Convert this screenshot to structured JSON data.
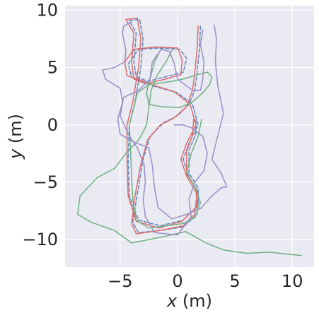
{
  "chart_data": {
    "type": "line",
    "xlabel_var": "x",
    "xlabel_unit": " (m)",
    "ylabel_var": "y",
    "ylabel_unit": " (m)",
    "xlim": [
      -9.8,
      11.9
    ],
    "ylim": [
      -12.4,
      10.4
    ],
    "x_ticks": [
      -5,
      0,
      5,
      10
    ],
    "x_tick_labels": [
      "−5",
      "0",
      "5",
      "10"
    ],
    "y_ticks": [
      -10,
      -5,
      0,
      5,
      10
    ],
    "y_tick_labels": [
      "−10",
      "−5",
      "0",
      "5",
      "10"
    ],
    "grid": true,
    "background": "#eaeaf2",
    "series": [
      {
        "color": "#5f84b9",
        "dashed": true,
        "points": [
          [
            2.0,
            8.6
          ],
          [
            1.9,
            6.5
          ],
          [
            1.7,
            4.5
          ],
          [
            1.5,
            3.0
          ],
          [
            1.0,
            1.8
          ],
          [
            0.0,
            0.8
          ],
          [
            -1.2,
            0.2
          ],
          [
            -2.4,
            -1.0
          ],
          [
            -3.0,
            -3.0
          ],
          [
            -3.5,
            -6.0
          ],
          [
            -3.9,
            -8.5
          ],
          [
            -3.4,
            -9.4
          ],
          [
            -1.5,
            -9.2
          ],
          [
            0.5,
            -8.9
          ],
          [
            1.7,
            -7.8
          ],
          [
            1.8,
            -6.0
          ],
          [
            1.0,
            -4.5
          ],
          [
            0.5,
            -3.0
          ],
          [
            1.0,
            -1.6
          ],
          [
            1.8,
            0.0
          ],
          [
            1.3,
            1.8
          ],
          [
            0,
            2.8
          ],
          [
            -1.8,
            3.3
          ],
          [
            -3.0,
            3.7
          ],
          [
            -4.0,
            4.2
          ],
          [
            -4.3,
            5.3
          ],
          [
            -3.4,
            6.6
          ],
          [
            -1.6,
            6.7
          ],
          [
            0.2,
            6.6
          ],
          [
            0.8,
            5.8
          ],
          [
            0.5,
            4.6
          ],
          [
            -1,
            4.2
          ],
          [
            -2.6,
            3.8
          ],
          [
            -3.6,
            4.2
          ],
          [
            -3.8,
            5.5
          ],
          [
            -3.6,
            8.0
          ],
          [
            -4.2,
            9.1
          ],
          [
            -3.3,
            9.2
          ],
          [
            -3.0,
            7.5
          ],
          [
            -3.2,
            5.0
          ],
          [
            -3.7,
            2.0
          ],
          [
            -4.2,
            0.0
          ],
          [
            -4.3,
            -3.0
          ],
          [
            -4.2,
            -6.2
          ],
          [
            -3.4,
            -8.3
          ],
          [
            -1.5,
            -8.8
          ],
          [
            0.5,
            -8.3
          ],
          [
            1.8,
            -7.0
          ],
          [
            1.8,
            -5.5
          ],
          [
            1.0,
            -4.2
          ],
          [
            1.0,
            -2.2
          ],
          [
            1.6,
            -0.8
          ],
          [
            1.6,
            0.6
          ]
        ]
      },
      {
        "color": "#dd6a6a",
        "dashed": false,
        "points": [
          [
            1.8,
            8.6
          ],
          [
            1.7,
            6.5
          ],
          [
            1.5,
            4.5
          ],
          [
            1.3,
            3.0
          ],
          [
            0.8,
            1.6
          ],
          [
            -0.3,
            0.6
          ],
          [
            -1.5,
            0.0
          ],
          [
            -2.6,
            -1.3
          ],
          [
            -3.2,
            -3.4
          ],
          [
            -3.7,
            -6.2
          ],
          [
            -4.0,
            -8.6
          ],
          [
            -3.6,
            -9.5
          ],
          [
            -1.5,
            -9.2
          ],
          [
            0.5,
            -8.8
          ],
          [
            1.5,
            -7.8
          ],
          [
            1.7,
            -6.0
          ],
          [
            0.8,
            -4.5
          ],
          [
            0.3,
            -3.0
          ],
          [
            0.8,
            -1.6
          ],
          [
            1.6,
            0.0
          ],
          [
            1.1,
            1.8
          ],
          [
            -0.3,
            2.9
          ],
          [
            -1.9,
            3.4
          ],
          [
            -3.2,
            3.9
          ],
          [
            -4.4,
            4.3
          ],
          [
            -4.6,
            5.5
          ],
          [
            -3.8,
            6.6
          ],
          [
            -1.8,
            6.8
          ],
          [
            0,
            6.7
          ],
          [
            0.4,
            5.7
          ],
          [
            0.3,
            4.4
          ],
          [
            -1,
            4.0
          ],
          [
            -2.8,
            3.6
          ],
          [
            -3.8,
            4.0
          ],
          [
            -4.0,
            5.5
          ],
          [
            -3.8,
            8.0
          ],
          [
            -4.5,
            9.2
          ],
          [
            -3.5,
            9.3
          ],
          [
            -3.2,
            7.5
          ],
          [
            -3.4,
            5.0
          ],
          [
            -3.9,
            2.0
          ],
          [
            -4.4,
            0.0
          ],
          [
            -4.4,
            -3.0
          ],
          [
            -4.3,
            -6.2
          ],
          [
            -3.6,
            -8.4
          ],
          [
            -1.6,
            -9.0
          ],
          [
            0.4,
            -8.4
          ],
          [
            1.7,
            -7.1
          ],
          [
            1.6,
            -5.5
          ],
          [
            0.8,
            -4.3
          ],
          [
            0.8,
            -2.3
          ],
          [
            1.3,
            -0.9
          ],
          [
            1.4,
            0.5
          ]
        ]
      },
      {
        "color": "#6fb07f",
        "dashed": false,
        "points": [
          [
            -0.5,
            6.5
          ],
          [
            -1.0,
            5.5
          ],
          [
            -1.8,
            4.3
          ],
          [
            -2.3,
            3.0
          ],
          [
            -2.5,
            1.5
          ],
          [
            -2.7,
            0.0
          ],
          [
            -3.3,
            -1.2
          ],
          [
            -4.5,
            -2.5
          ],
          [
            -5.5,
            -3.8
          ],
          [
            -7.0,
            -4.6
          ],
          [
            -8.5,
            -6.2
          ],
          [
            -8.7,
            -7.8
          ],
          [
            -7.5,
            -8.5
          ],
          [
            -5.5,
            -9.2
          ],
          [
            -4.0,
            -10.3
          ],
          [
            -2.5,
            -10.0
          ],
          [
            -1.0,
            -9.7
          ],
          [
            0.7,
            -9.3
          ],
          [
            2.5,
            -10.3
          ],
          [
            4.0,
            -10.9
          ],
          [
            6.0,
            -11.2
          ],
          [
            8.0,
            -11.1
          ],
          [
            10.8,
            -11.4
          ]
        ],
        "extra": [
          [
            [
              -1.5,
              6.5
            ],
            [
              -2.0,
              5.5
            ],
            [
              -2.4,
              4.0
            ],
            [
              -2.7,
              2.8
            ],
            [
              -2.5,
              1.8
            ],
            [
              -1.5,
              1.6
            ],
            [
              0.2,
              1.5
            ],
            [
              1.3,
              2.0
            ],
            [
              2.2,
              2.8
            ],
            [
              2.8,
              3.5
            ],
            [
              3.0,
              4.2
            ],
            [
              2.6,
              4.6
            ],
            [
              1.8,
              4.4
            ],
            [
              0.5,
              4.0
            ],
            [
              -0.5,
              3.8
            ],
            [
              -2.5,
              3.5
            ],
            [
              -3.5,
              2.8
            ],
            [
              -3.8,
              1.5
            ],
            [
              -4.2,
              0.0
            ],
            [
              -4.1,
              -2.0
            ],
            [
              -4.0,
              -4.5
            ],
            [
              -3.9,
              -6.5
            ],
            [
              -3.6,
              -8.3
            ],
            [
              -2.5,
              -9.0
            ],
            [
              -1.0,
              -8.8
            ],
            [
              0.5,
              -8.6
            ],
            [
              1.5,
              -8.1
            ],
            [
              2.0,
              -6.8
            ],
            [
              1.6,
              -5.5
            ],
            [
              0.8,
              -4.2
            ],
            [
              1.2,
              -2.5
            ],
            [
              1.8,
              -1.0
            ],
            [
              2.1,
              0.5
            ]
          ]
        ]
      },
      {
        "color": "#9a8ec8",
        "dashed": false,
        "points": [
          [
            -4.0,
            9.0
          ],
          [
            -4.7,
            8.6
          ],
          [
            -4.8,
            8.0
          ],
          [
            -4.5,
            6.5
          ],
          [
            -4.6,
            5.5
          ],
          [
            -5.5,
            5.0
          ],
          [
            -6.5,
            4.8
          ],
          [
            -6.3,
            4.0
          ],
          [
            -5.0,
            3.2
          ],
          [
            -4.8,
            2.0
          ],
          [
            -5.2,
            0.5
          ],
          [
            -5.0,
            -0.8
          ],
          [
            -3.8,
            -1.5
          ],
          [
            -2.5,
            -2.0
          ],
          [
            -2.2,
            -3.5
          ],
          [
            -2.0,
            -5.5
          ],
          [
            -1.7,
            -7.2
          ],
          [
            -0.5,
            -8.2
          ],
          [
            0.8,
            -7.8
          ],
          [
            2.0,
            -7.3
          ],
          [
            3.0,
            -6.2
          ],
          [
            3.8,
            -5.5
          ],
          [
            4.3,
            -5.4
          ],
          [
            3.8,
            -4.2
          ],
          [
            3.0,
            -3.0
          ],
          [
            3.5,
            -1.0
          ],
          [
            4.0,
            1.0
          ],
          [
            3.5,
            3.5
          ],
          [
            3.3,
            5.5
          ],
          [
            3.4,
            7.5
          ],
          [
            3.2,
            8.7
          ]
        ],
        "extra": [
          [
            [
              -0.3,
              0.0
            ],
            [
              0.5,
              0.0
            ],
            [
              1.3,
              -0.3
            ],
            [
              2.2,
              -1.0
            ],
            [
              2.6,
              -2.5
            ],
            [
              2.3,
              -4.0
            ],
            [
              1.5,
              -5.0
            ],
            [
              1.0,
              -6.5
            ],
            [
              1.2,
              -8.0
            ],
            [
              0.0,
              -9.6
            ],
            [
              -2.0,
              -9.4
            ],
            [
              -2.8,
              -8.0
            ],
            [
              -3.0,
              -6.5
            ],
            [
              -2.8,
              -5.0
            ],
            [
              -2.9,
              -3.5
            ],
            [
              -3.5,
              -2.0
            ],
            [
              -4.3,
              -0.8
            ],
            [
              -5.0,
              0.8
            ],
            [
              -4.7,
              2.4
            ],
            [
              -3.4,
              3.0
            ],
            [
              -2.4,
              4.0
            ],
            [
              -2.2,
              5.5
            ],
            [
              -1.4,
              6.6
            ],
            [
              -0.7,
              6.4
            ],
            [
              -0.3,
              5.4
            ],
            [
              0.0,
              4.0
            ],
            [
              1.3,
              3.0
            ],
            [
              2.0,
              3.0
            ],
            [
              2.2,
              4.0
            ],
            [
              2.3,
              5.5
            ],
            [
              2.0,
              7.0
            ],
            [
              2.2,
              8.3
            ]
          ]
        ]
      }
    ]
  }
}
